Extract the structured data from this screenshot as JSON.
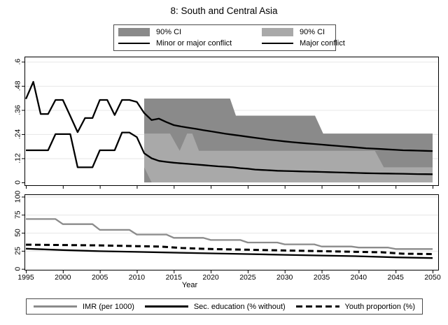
{
  "figure": {
    "title": "8: South and Central Asia",
    "xlabel": "Year"
  },
  "colors": {
    "dark_ci": "#8a8a8a",
    "light_ci": "#a9a9a9",
    "imr_line": "#8b8b8b",
    "black_line": "#000000",
    "gridline": "#e6e6e6",
    "border": "#000000"
  },
  "legend_top": {
    "rows": [
      [
        {
          "swatch": "box-dark",
          "label": "90% CI"
        },
        {
          "swatch": "box-light",
          "label": "90% CI"
        }
      ],
      [
        {
          "swatch": "line-solid",
          "label": "Minor or major conflict"
        },
        {
          "swatch": "line-solid",
          "label": "Major conflict"
        }
      ]
    ]
  },
  "legend_bottom": {
    "items": [
      {
        "swatch": "line-gray",
        "label": "IMR (per 1000)"
      },
      {
        "swatch": "line-solid",
        "label": "Sec. education (% without)"
      },
      {
        "swatch": "line-dashed",
        "label": "Youth proportion (%)"
      }
    ]
  },
  "chart_data": [
    {
      "type": "line",
      "panel": "conflict-probability",
      "xlim": [
        1995,
        2050
      ],
      "ylim": [
        0,
        0.6
      ],
      "grid": true,
      "yticks": [
        0,
        0.12,
        0.24,
        0.36,
        0.48,
        0.6
      ],
      "ytick_labels": [
        "0",
        ".12",
        ".24",
        ".36",
        ".48",
        ".6"
      ],
      "xticks": [
        1995,
        2000,
        2005,
        2010,
        2015,
        2020,
        2025,
        2030,
        2035,
        2040,
        2045,
        2050
      ],
      "xtick_labels": [],
      "bands": [
        {
          "name": "minor-or-major-conflict-90ci",
          "color_key": "dark_ci",
          "upper": [
            [
              2011,
              0.417
            ],
            [
              2022.6,
              0.417
            ],
            [
              2023.4,
              0.332
            ],
            [
              2034.1,
              0.332
            ],
            [
              2035.2,
              0.243
            ],
            [
              2050,
              0.243
            ]
          ],
          "lower": [
            [
              2011,
              0
            ],
            [
              2050,
              0
            ]
          ]
        },
        {
          "name": "major-conflict-90ci",
          "color_key": "light_ci",
          "upper": [
            [
              2011,
              0.243
            ],
            [
              2014.5,
              0.243
            ],
            [
              2015.8,
              0.157
            ],
            [
              2016.8,
              0.243
            ],
            [
              2017.5,
              0.243
            ],
            [
              2018.4,
              0.157
            ],
            [
              2042.2,
              0.157
            ],
            [
              2043.4,
              0.075
            ],
            [
              2050,
              0.075
            ]
          ],
          "lower": [
            [
              2011,
              0.075
            ],
            [
              2012,
              0
            ],
            [
              2050,
              0
            ]
          ]
        }
      ],
      "series": [
        {
          "name": "Minor or major conflict",
          "style": "solid-black",
          "points": [
            [
              1995,
              0.415
            ],
            [
              1996,
              0.5
            ],
            [
              1997,
              0.34
            ],
            [
              1998,
              0.34
            ],
            [
              1999,
              0.41
            ],
            [
              2000,
              0.41
            ],
            [
              2001,
              0.33
            ],
            [
              2002,
              0.25
            ],
            [
              2003,
              0.32
            ],
            [
              2004,
              0.32
            ],
            [
              2005,
              0.41
            ],
            [
              2006,
              0.41
            ],
            [
              2007,
              0.335
            ],
            [
              2008,
              0.41
            ],
            [
              2009,
              0.41
            ],
            [
              2010,
              0.4
            ],
            [
              2011,
              0.345
            ],
            [
              2012,
              0.31
            ],
            [
              2013,
              0.317
            ],
            [
              2014,
              0.3
            ],
            [
              2015,
              0.285
            ],
            [
              2016,
              0.278
            ],
            [
              2017,
              0.272
            ],
            [
              2018,
              0.266
            ],
            [
              2019,
              0.26
            ],
            [
              2020,
              0.254
            ],
            [
              2021,
              0.248
            ],
            [
              2022,
              0.242
            ],
            [
              2023,
              0.237
            ],
            [
              2024,
              0.232
            ],
            [
              2025,
              0.227
            ],
            [
              2026,
              0.222
            ],
            [
              2027,
              0.217
            ],
            [
              2028,
              0.212
            ],
            [
              2029,
              0.208
            ],
            [
              2030,
              0.204
            ],
            [
              2031,
              0.2
            ],
            [
              2032,
              0.197
            ],
            [
              2033,
              0.194
            ],
            [
              2034,
              0.191
            ],
            [
              2035,
              0.188
            ],
            [
              2036,
              0.185
            ],
            [
              2037,
              0.182
            ],
            [
              2038,
              0.179
            ],
            [
              2039,
              0.176
            ],
            [
              2040,
              0.173
            ],
            [
              2041,
              0.17
            ],
            [
              2042,
              0.168
            ],
            [
              2043,
              0.166
            ],
            [
              2044,
              0.164
            ],
            [
              2045,
              0.162
            ],
            [
              2046,
              0.16
            ],
            [
              2047,
              0.159
            ],
            [
              2048,
              0.158
            ],
            [
              2049,
              0.157
            ],
            [
              2050,
              0.156
            ]
          ]
        },
        {
          "name": "Major conflict",
          "style": "solid-black",
          "points": [
            [
              1995,
              0.16
            ],
            [
              1996,
              0.16
            ],
            [
              1997,
              0.16
            ],
            [
              1998,
              0.16
            ],
            [
              1999,
              0.24
            ],
            [
              2000,
              0.24
            ],
            [
              2001,
              0.24
            ],
            [
              2002,
              0.075
            ],
            [
              2003,
              0.075
            ],
            [
              2004,
              0.075
            ],
            [
              2005,
              0.16
            ],
            [
              2006,
              0.16
            ],
            [
              2007,
              0.16
            ],
            [
              2008,
              0.248
            ],
            [
              2009,
              0.248
            ],
            [
              2010,
              0.225
            ],
            [
              2011,
              0.145
            ],
            [
              2012,
              0.12
            ],
            [
              2013,
              0.107
            ],
            [
              2014,
              0.102
            ],
            [
              2015,
              0.098
            ],
            [
              2016,
              0.095
            ],
            [
              2017,
              0.092
            ],
            [
              2018,
              0.089
            ],
            [
              2019,
              0.086
            ],
            [
              2020,
              0.083
            ],
            [
              2021,
              0.08
            ],
            [
              2022,
              0.078
            ],
            [
              2023,
              0.075
            ],
            [
              2024,
              0.071
            ],
            [
              2025,
              0.068
            ],
            [
              2026,
              0.064
            ],
            [
              2027,
              0.062
            ],
            [
              2028,
              0.06
            ],
            [
              2029,
              0.058
            ],
            [
              2030,
              0.057
            ],
            [
              2031,
              0.056
            ],
            [
              2032,
              0.055
            ],
            [
              2033,
              0.054
            ],
            [
              2034,
              0.053
            ],
            [
              2035,
              0.052
            ],
            [
              2036,
              0.051
            ],
            [
              2037,
              0.05
            ],
            [
              2038,
              0.049
            ],
            [
              2039,
              0.048
            ],
            [
              2040,
              0.047
            ],
            [
              2041,
              0.046
            ],
            [
              2042,
              0.045
            ],
            [
              2043,
              0.0445
            ],
            [
              2044,
              0.044
            ],
            [
              2045,
              0.0435
            ],
            [
              2046,
              0.043
            ],
            [
              2047,
              0.042
            ],
            [
              2048,
              0.0415
            ],
            [
              2049,
              0.041
            ],
            [
              2050,
              0.0405
            ]
          ]
        }
      ]
    },
    {
      "type": "line",
      "panel": "indicators",
      "xlim": [
        1995,
        2050
      ],
      "ylim": [
        0,
        100
      ],
      "grid": true,
      "yticks": [
        0,
        25,
        50,
        75,
        100
      ],
      "ytick_labels": [
        "0",
        "25",
        "50",
        "75",
        "100"
      ],
      "xticks": [
        1995,
        2000,
        2005,
        2010,
        2015,
        2020,
        2025,
        2030,
        2035,
        2040,
        2045,
        2050
      ],
      "xtick_labels": [
        "1995",
        "2000",
        "2005",
        "2010",
        "2015",
        "2020",
        "2025",
        "2030",
        "2035",
        "2040",
        "2045",
        "2050"
      ],
      "bands": [],
      "series": [
        {
          "name": "IMR (per 1000)",
          "style": "solid-gray",
          "points": [
            [
              1995,
              69
            ],
            [
              1999,
              69
            ],
            [
              2000,
              62
            ],
            [
              2004,
              62
            ],
            [
              2005,
              54
            ],
            [
              2009,
              54
            ],
            [
              2010,
              47.5
            ],
            [
              2014,
              47.5
            ],
            [
              2015,
              43
            ],
            [
              2019,
              43
            ],
            [
              2020,
              40
            ],
            [
              2024,
              40
            ],
            [
              2025,
              36.5
            ],
            [
              2029,
              36.5
            ],
            [
              2030,
              34
            ],
            [
              2034,
              34
            ],
            [
              2035,
              31
            ],
            [
              2039,
              31
            ],
            [
              2040,
              29.5
            ],
            [
              2044,
              29.5
            ],
            [
              2045,
              27.5
            ],
            [
              2050,
              27.5
            ]
          ]
        },
        {
          "name": "Sec. education (% without)",
          "style": "solid-black",
          "points": [
            [
              1995,
              28
            ],
            [
              2000,
              26
            ],
            [
              2005,
              24.5
            ],
            [
              2010,
              23.5
            ],
            [
              2015,
              22.5
            ],
            [
              2020,
              21.5
            ],
            [
              2025,
              20.5
            ],
            [
              2030,
              19.5
            ],
            [
              2035,
              18.5
            ],
            [
              2040,
              17.5
            ],
            [
              2045,
              16
            ],
            [
              2050,
              15
            ]
          ]
        },
        {
          "name": "Youth proportion (%)",
          "style": "dashed-black",
          "points": [
            [
              1995,
              33.5
            ],
            [
              2000,
              33
            ],
            [
              2005,
              32.5
            ],
            [
              2010,
              31.5
            ],
            [
              2013,
              31
            ],
            [
              2016,
              29
            ],
            [
              2020,
              27.5
            ],
            [
              2025,
              26.5
            ],
            [
              2030,
              25.5
            ],
            [
              2035,
              24.5
            ],
            [
              2040,
              23.5
            ],
            [
              2043,
              23
            ],
            [
              2046,
              21
            ],
            [
              2050,
              20.5
            ]
          ]
        }
      ]
    }
  ]
}
